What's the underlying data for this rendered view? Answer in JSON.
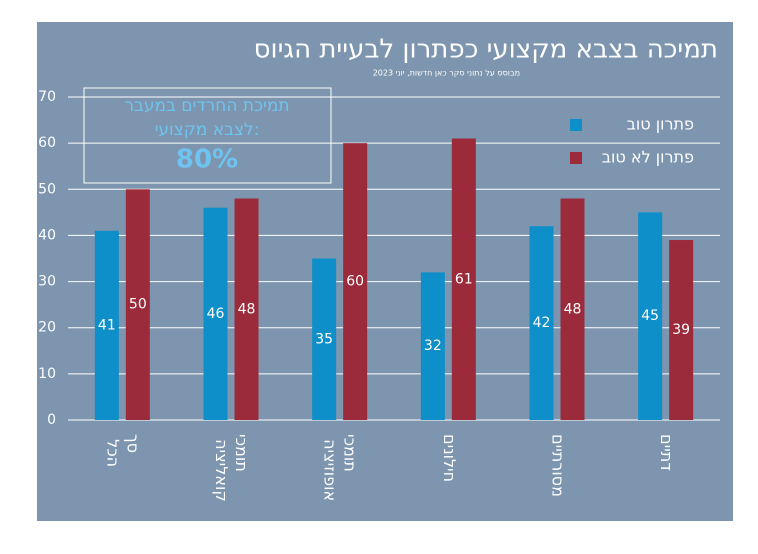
{
  "chart_data": {
    "type": "bar",
    "title": "תמיכה בצבא מקצועי כפתרון לבעיית הגיוס",
    "subtitle": "מבוסס על נתוני סקר כאן חדשות, יוני 2023",
    "annotation": {
      "lines": [
        "תמיכת החרדים במעבר",
        "לצבא מקצועי:"
      ],
      "highlight": "80%"
    },
    "categories": [
      "סך הכל",
      "תומכי קואליציה",
      "תומכי אופוזיציה",
      "חילונים",
      "מסורתיים",
      "דתיים"
    ],
    "series": [
      {
        "name": "פתרון טוב",
        "color": "#0e8fc9",
        "values": [
          41,
          46,
          35,
          32,
          42,
          45
        ]
      },
      {
        "name": "פתרון לא טוב",
        "color": "#9b2a3a",
        "values": [
          50,
          48,
          60,
          61,
          48,
          39
        ]
      }
    ],
    "ylim": [
      0,
      70
    ],
    "yticks": [
      0,
      10,
      20,
      30,
      40,
      50,
      60,
      70
    ],
    "grid": true,
    "legend": "top-right"
  }
}
